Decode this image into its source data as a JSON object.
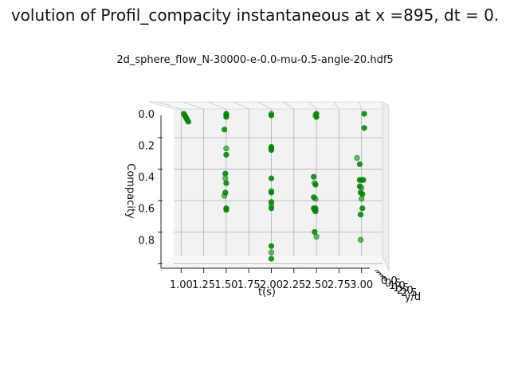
{
  "chart_data": {
    "type": "scatter",
    "projection": "3d",
    "title": "volution of Profil_compacity instantaneous at x =895, dt = 0.",
    "subtitle": "2d_sphere_flow_N-30000-e-0.0-mu-0.5-angle-20.hdf5",
    "xlabel": "t(s)",
    "ylabel": "Compacity",
    "zlabel": "y/d",
    "x_ticks": [
      "1.00",
      "1.25",
      "1.50",
      "1.75",
      "2.00",
      "2.25",
      "2.50",
      "2.75",
      "3.00"
    ],
    "y_ticks": [
      "0.0",
      "0.2",
      "0.4",
      "0.6",
      "0.8"
    ],
    "z_ticks": [
      "0.0",
      "0.5",
      "1.0",
      "1.5",
      "2.0",
      "2.5"
    ],
    "xlim": [
      0.9,
      3.1
    ],
    "ylim": [
      0.0,
      0.95
    ],
    "grid": true,
    "marker_color": "#008000",
    "points": [
      {
        "x": 1.03,
        "y": 0.0
      },
      {
        "x": 1.04,
        "y": 0.01
      },
      {
        "x": 1.05,
        "y": 0.02
      },
      {
        "x": 1.06,
        "y": 0.03
      },
      {
        "x": 1.07,
        "y": 0.04
      },
      {
        "x": 1.08,
        "y": 0.05
      },
      {
        "x": 1.5,
        "y": 0.0
      },
      {
        "x": 1.5,
        "y": 0.01
      },
      {
        "x": 1.5,
        "y": 0.02
      },
      {
        "x": 1.48,
        "y": 0.1
      },
      {
        "x": 1.5,
        "y": 0.22
      },
      {
        "x": 1.5,
        "y": 0.26
      },
      {
        "x": 1.49,
        "y": 0.38
      },
      {
        "x": 1.49,
        "y": 0.41
      },
      {
        "x": 1.5,
        "y": 0.44
      },
      {
        "x": 1.49,
        "y": 0.5
      },
      {
        "x": 1.48,
        "y": 0.52
      },
      {
        "x": 1.5,
        "y": 0.6
      },
      {
        "x": 1.5,
        "y": 0.61
      },
      {
        "x": 2.0,
        "y": 0.0
      },
      {
        "x": 2.0,
        "y": 0.01
      },
      {
        "x": 2.0,
        "y": 0.21
      },
      {
        "x": 2.0,
        "y": 0.22
      },
      {
        "x": 2.0,
        "y": 0.23
      },
      {
        "x": 2.0,
        "y": 0.41
      },
      {
        "x": 2.0,
        "y": 0.49
      },
      {
        "x": 2.0,
        "y": 0.5
      },
      {
        "x": 2.0,
        "y": 0.56
      },
      {
        "x": 2.0,
        "y": 0.58
      },
      {
        "x": 2.0,
        "y": 0.6
      },
      {
        "x": 2.0,
        "y": 0.84
      },
      {
        "x": 2.0,
        "y": 0.88
      },
      {
        "x": 2.0,
        "y": 0.92
      },
      {
        "x": 2.5,
        "y": 0.0
      },
      {
        "x": 2.49,
        "y": 0.01
      },
      {
        "x": 2.5,
        "y": 0.02
      },
      {
        "x": 2.47,
        "y": 0.4
      },
      {
        "x": 2.48,
        "y": 0.44
      },
      {
        "x": 2.49,
        "y": 0.45
      },
      {
        "x": 2.47,
        "y": 0.53
      },
      {
        "x": 2.49,
        "y": 0.54
      },
      {
        "x": 2.47,
        "y": 0.6
      },
      {
        "x": 2.49,
        "y": 0.6
      },
      {
        "x": 2.48,
        "y": 0.61
      },
      {
        "x": 2.49,
        "y": 0.62
      },
      {
        "x": 2.48,
        "y": 0.75
      },
      {
        "x": 2.5,
        "y": 0.78
      },
      {
        "x": 3.03,
        "y": 0.0
      },
      {
        "x": 3.03,
        "y": 0.09
      },
      {
        "x": 2.95,
        "y": 0.28
      },
      {
        "x": 2.98,
        "y": 0.32
      },
      {
        "x": 2.98,
        "y": 0.42
      },
      {
        "x": 3.0,
        "y": 0.42
      },
      {
        "x": 3.02,
        "y": 0.42
      },
      {
        "x": 2.98,
        "y": 0.46
      },
      {
        "x": 3.0,
        "y": 0.47
      },
      {
        "x": 2.99,
        "y": 0.5
      },
      {
        "x": 3.01,
        "y": 0.51
      },
      {
        "x": 3.0,
        "y": 0.54
      },
      {
        "x": 3.01,
        "y": 0.6
      },
      {
        "x": 2.99,
        "y": 0.64
      },
      {
        "x": 2.99,
        "y": 0.8
      }
    ]
  }
}
